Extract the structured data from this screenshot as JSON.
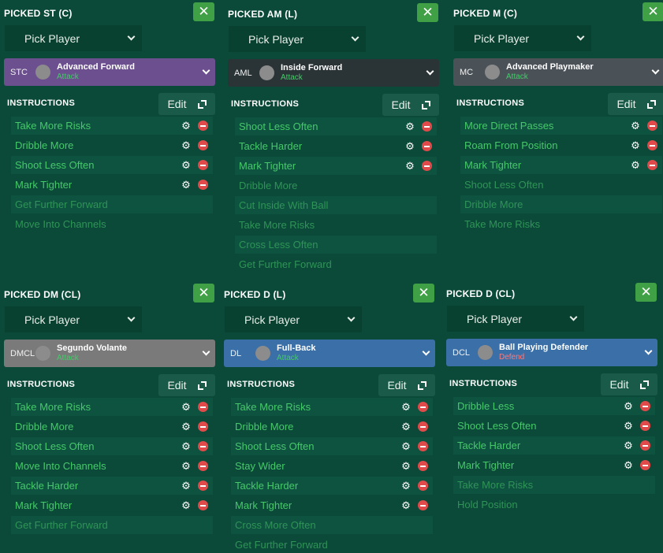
{
  "panels": [
    {
      "title": "PICKED ST (C)",
      "pick": "Pick Player",
      "role": {
        "pos": "STC",
        "name": "Advanced Forward",
        "duty": "Attack",
        "color": "#6b4f8e"
      },
      "instructions_label": "INSTRUCTIONS",
      "edit_label": "Edit",
      "items": [
        {
          "label": "Take More Risks",
          "active": true
        },
        {
          "label": "Dribble More",
          "active": true
        },
        {
          "label": "Shoot Less Often",
          "active": true
        },
        {
          "label": "Mark Tighter",
          "active": true
        },
        {
          "label": "Get Further Forward",
          "active": false
        },
        {
          "label": "Move Into Channels",
          "active": false
        }
      ]
    },
    {
      "title": "PICKED AM (L)",
      "pick": "Pick Player",
      "role": {
        "pos": "AML",
        "name": "Inside Forward",
        "duty": "Attack",
        "color": "#2a3437"
      },
      "instructions_label": "INSTRUCTIONS",
      "edit_label": "Edit",
      "items": [
        {
          "label": "Shoot Less Often",
          "active": true
        },
        {
          "label": "Tackle Harder",
          "active": true
        },
        {
          "label": "Mark Tighter",
          "active": true
        },
        {
          "label": "Dribble More",
          "active": false
        },
        {
          "label": "Cut Inside With Ball",
          "active": false
        },
        {
          "label": "Take More Risks",
          "active": false
        },
        {
          "label": "Cross Less Often",
          "active": false
        },
        {
          "label": "Get Further Forward",
          "active": false
        }
      ]
    },
    {
      "title": "PICKED M (C)",
      "pick": "Pick Player",
      "role": {
        "pos": "MC",
        "name": "Advanced Playmaker",
        "duty": "Attack",
        "color": "#4a5258"
      },
      "instructions_label": "INSTRUCTIONS",
      "edit_label": "Edit",
      "items": [
        {
          "label": "More Direct Passes",
          "active": true
        },
        {
          "label": "Roam From Position",
          "active": true
        },
        {
          "label": "Mark Tighter",
          "active": true
        },
        {
          "label": "Shoot Less Often",
          "active": false
        },
        {
          "label": "Dribble More",
          "active": false
        },
        {
          "label": "Take More Risks",
          "active": false
        }
      ]
    },
    {
      "title": "PICKED DM (CL)",
      "pick": "Pick Player",
      "role": {
        "pos": "DMCL",
        "name": "Segundo Volante",
        "duty": "Attack",
        "color": "#7a7a7a"
      },
      "instructions_label": "INSTRUCTIONS",
      "edit_label": "Edit",
      "items": [
        {
          "label": "Take More Risks",
          "active": true
        },
        {
          "label": "Dribble More",
          "active": true
        },
        {
          "label": "Shoot Less Often",
          "active": true
        },
        {
          "label": "Move Into Channels",
          "active": true
        },
        {
          "label": "Tackle Harder",
          "active": true
        },
        {
          "label": "Mark Tighter",
          "active": true
        },
        {
          "label": "Get Further Forward",
          "active": false
        }
      ]
    },
    {
      "title": "PICKED D (L)",
      "pick": "Pick Player",
      "role": {
        "pos": "DL",
        "name": "Full-Back",
        "duty": "Attack",
        "color": "#3a6fa8"
      },
      "instructions_label": "INSTRUCTIONS",
      "edit_label": "Edit",
      "items": [
        {
          "label": "Take More Risks",
          "active": true
        },
        {
          "label": "Dribble More",
          "active": true
        },
        {
          "label": "Shoot Less Often",
          "active": true
        },
        {
          "label": "Stay Wider",
          "active": true
        },
        {
          "label": "Tackle Harder",
          "active": true
        },
        {
          "label": "Mark Tighter",
          "active": true
        },
        {
          "label": "Cross More Often",
          "active": false
        },
        {
          "label": "Get Further Forward",
          "active": false
        }
      ]
    },
    {
      "title": "PICKED D (CL)",
      "pick": "Pick Player",
      "role": {
        "pos": "DCL",
        "name": "Ball Playing Defender",
        "duty": "Defend",
        "color": "#3a6fa8"
      },
      "instructions_label": "INSTRUCTIONS",
      "edit_label": "Edit",
      "items": [
        {
          "label": "Dribble Less",
          "active": true
        },
        {
          "label": "Shoot Less Often",
          "active": true
        },
        {
          "label": "Tackle Harder",
          "active": true
        },
        {
          "label": "Mark Tighter",
          "active": true
        },
        {
          "label": "Take More Risks",
          "active": false
        },
        {
          "label": "Hold Position",
          "active": false
        }
      ]
    }
  ],
  "icons": {
    "close": "close-icon",
    "chevron": "chevron-down-icon",
    "edit": "expand-icon",
    "settings": "gear-icon",
    "remove": "remove-icon"
  }
}
